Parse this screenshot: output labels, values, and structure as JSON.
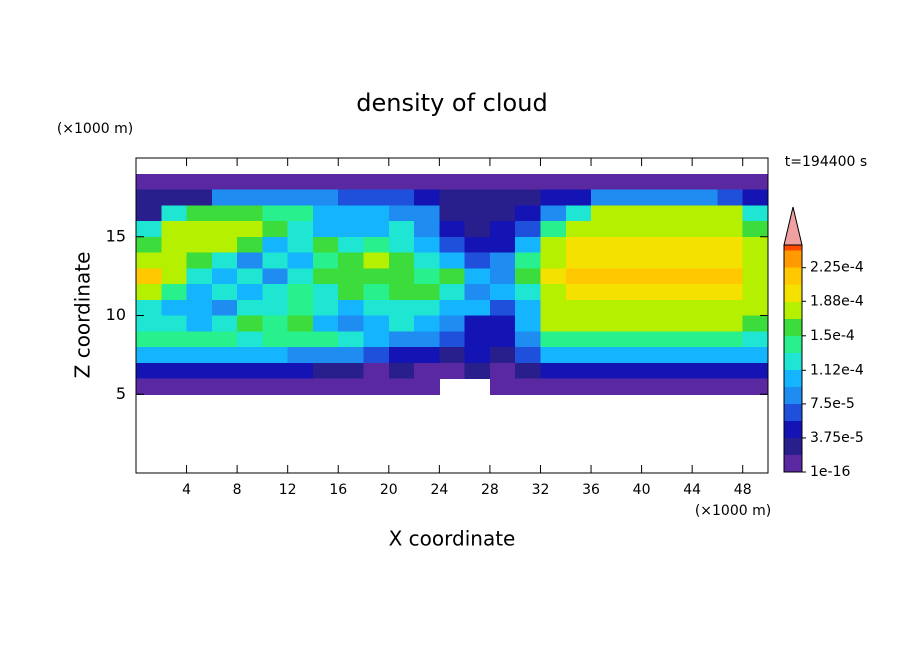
{
  "chart_data": {
    "type": "contour",
    "title": "density of cloud",
    "xlabel": "X coordinate",
    "ylabel": "Z coordinate",
    "xlabel_unit": "(×1000 m)",
    "ylabel_unit": "(×1000 m)",
    "annotation": "t=194400 s",
    "xlim": [
      0,
      50
    ],
    "ylim": [
      0,
      20
    ],
    "xticks": [
      4,
      8,
      12,
      16,
      20,
      24,
      28,
      32,
      36,
      40,
      44,
      48
    ],
    "yticks": [
      5,
      10,
      15
    ],
    "x": [
      1,
      3,
      5,
      7,
      9,
      11,
      13,
      15,
      17,
      19,
      21,
      23,
      25,
      27,
      29,
      31,
      33,
      35,
      37,
      39,
      41,
      43,
      45,
      47,
      49
    ],
    "y": [
      18.5,
      17.5,
      16.5,
      15.5,
      14.5,
      13.5,
      12.5,
      11.5,
      10.5,
      9.5,
      8.5,
      7.5,
      6.5,
      5.5
    ],
    "values": [
      [
        1e-05,
        1e-05,
        1e-05,
        1e-05,
        1e-05,
        1e-05,
        1e-05,
        1e-05,
        1e-05,
        1e-05,
        1e-05,
        1e-05,
        1e-05,
        1e-05,
        1e-05,
        1e-05,
        1e-05,
        1e-05,
        1e-05,
        1e-05,
        1e-05,
        1e-05,
        1e-05,
        1e-05,
        1e-05
      ],
      [
        2e-05,
        2e-05,
        3e-05,
        8e-05,
        9e-05,
        9e-05,
        9e-05,
        8e-05,
        6e-05,
        6e-05,
        6e-05,
        5e-05,
        3e-05,
        3e-05,
        3e-05,
        2e-05,
        4e-05,
        5e-05,
        8e-05,
        8e-05,
        8e-05,
        8e-05,
        8e-05,
        7e-05,
        4e-05
      ],
      [
        3e-05,
        0.00012,
        0.00016,
        0.00016,
        0.00016,
        0.00014,
        0.00014,
        0.00011,
        0.00011,
        0.00011,
        8e-05,
        8e-05,
        3e-05,
        3e-05,
        3e-05,
        4e-05,
        9e-05,
        0.00013,
        0.00017,
        0.00017,
        0.00017,
        0.00017,
        0.00017,
        0.00017,
        0.00012
      ],
      [
        0.00012,
        0.000175,
        0.000175,
        0.000175,
        0.000175,
        0.00015,
        0.00013,
        0.00011,
        0.00011,
        0.00011,
        0.00012,
        9e-05,
        5e-05,
        3e-05,
        4e-05,
        7e-05,
        0.00014,
        0.000185,
        0.000185,
        0.000185,
        0.000185,
        0.000185,
        0.000185,
        0.000185,
        0.00015
      ],
      [
        0.00016,
        0.00018,
        0.00018,
        0.00018,
        0.00015,
        0.0001,
        0.00013,
        0.00015,
        0.00012,
        0.000145,
        0.00013,
        0.00011,
        7e-05,
        4e-05,
        5e-05,
        0.0001,
        0.00017,
        0.000195,
        0.000195,
        0.000195,
        0.000195,
        0.000195,
        0.000195,
        0.000195,
        0.00017
      ],
      [
        0.000185,
        0.00018,
        0.00016,
        0.00012,
        9e-05,
        0.00013,
        0.0001,
        0.00014,
        0.00016,
        0.00017,
        0.00015,
        0.00012,
        0.0001,
        6e-05,
        8e-05,
        0.00014,
        0.00018,
        0.0002,
        0.0002,
        0.0002,
        0.0002,
        0.0002,
        0.0002,
        0.0002,
        0.00018
      ],
      [
        0.00021,
        0.00017,
        0.00013,
        0.00011,
        0.00013,
        8e-05,
        0.00012,
        0.00015,
        0.00016,
        0.00016,
        0.000155,
        0.00014,
        0.00016,
        0.00011,
        9e-05,
        0.00016,
        0.00019,
        0.00021,
        0.00021,
        0.00021,
        0.00021,
        0.00021,
        0.00021,
        0.00021,
        0.000185
      ],
      [
        0.00018,
        0.00014,
        0.0001,
        0.00012,
        0.0001,
        0.00013,
        0.00014,
        0.00013,
        0.00015,
        0.00014,
        0.00016,
        0.00015,
        0.00013,
        9e-05,
        0.0001,
        0.00013,
        0.000185,
        0.000195,
        0.000195,
        0.000195,
        0.000195,
        0.000195,
        0.000195,
        0.000195,
        0.00018
      ],
      [
        0.00013,
        0.0001,
        0.00011,
        9e-05,
        0.00013,
        0.00012,
        0.00014,
        0.00012,
        0.0001,
        0.00013,
        0.00012,
        0.00013,
        0.00011,
        0.0001,
        7e-05,
        0.0001,
        0.00018,
        0.000185,
        0.000185,
        0.000185,
        0.000185,
        0.000185,
        0.000185,
        0.000185,
        0.000175
      ],
      [
        0.00012,
        0.00013,
        0.00011,
        0.00013,
        0.00016,
        0.00014,
        0.00015,
        0.00011,
        9e-05,
        0.00011,
        0.00012,
        0.0001,
        8e-05,
        5e-05,
        4e-05,
        0.0001,
        0.00017,
        0.00017,
        0.00017,
        0.00017,
        0.00017,
        0.00017,
        0.00017,
        0.00017,
        0.00015
      ],
      [
        0.000145,
        0.000145,
        0.000145,
        0.000145,
        0.00012,
        0.000145,
        0.000145,
        0.000145,
        0.00012,
        0.0001,
        9e-05,
        8e-05,
        7e-05,
        5e-05,
        4e-05,
        8e-05,
        0.00014,
        0.00014,
        0.00014,
        0.00014,
        0.00014,
        0.00014,
        0.00014,
        0.00014,
        0.00012
      ],
      [
        0.00011,
        0.00011,
        0.00011,
        0.00011,
        0.00011,
        0.00011,
        9e-05,
        8e-05,
        8e-05,
        7e-05,
        5e-05,
        4e-05,
        3e-05,
        4e-05,
        3e-05,
        6e-05,
        0.0001,
        0.0001,
        0.0001,
        0.0001,
        0.0001,
        0.0001,
        0.0001,
        0.0001,
        0.0001
      ],
      [
        5e-05,
        5e-05,
        5e-05,
        5e-05,
        5e-05,
        5e-05,
        5e-05,
        3e-05,
        2e-05,
        1e-05,
        2e-05,
        1e-05,
        1e-05,
        2e-05,
        1e-05,
        3e-05,
        5e-05,
        5e-05,
        5e-05,
        5e-05,
        5e-05,
        5e-05,
        5e-05,
        5e-05,
        5e-05
      ],
      [
        1e-05,
        1e-05,
        1e-05,
        1e-05,
        1e-05,
        1e-05,
        1e-05,
        1e-05,
        1e-05,
        1e-05,
        1e-05,
        1e-05,
        null,
        null,
        1e-05,
        1e-05,
        1e-05,
        1e-05,
        1e-05,
        1e-05,
        1e-05,
        1e-05,
        1e-05,
        1e-05,
        1e-05
      ]
    ],
    "colorbar": {
      "levels": [
        1e-16,
        1.875e-05,
        3.75e-05,
        5.625e-05,
        7.5e-05,
        9.375e-05,
        0.0001125,
        0.00013125,
        0.00015,
        0.00016875,
        0.0001875,
        0.00020625,
        0.000225,
        0.00024375
      ],
      "colors": [
        "#5a28a0",
        "#281e8c",
        "#1414b4",
        "#1e50dc",
        "#1e8cf0",
        "#14b4ff",
        "#1ee6d2",
        "#28f08c",
        "#3cdc3c",
        "#b4f000",
        "#f5e100",
        "#ffc800",
        "#ff9b00",
        "#ff4b00"
      ],
      "over_color": "#f0a0a0",
      "clim": [
        1e-16,
        0.00025
      ],
      "ticks": [
        {
          "value": 1e-16,
          "label": "1e-16"
        },
        {
          "value": 3.75e-05,
          "label": "3.75e-5"
        },
        {
          "value": 7.5e-05,
          "label": "7.5e-5"
        },
        {
          "value": 0.000112,
          "label": "1.12e-4"
        },
        {
          "value": 0.00015,
          "label": "1.5e-4"
        },
        {
          "value": 0.000188,
          "label": "1.88e-4"
        },
        {
          "value": 0.000225,
          "label": "2.25e-4"
        }
      ]
    }
  }
}
